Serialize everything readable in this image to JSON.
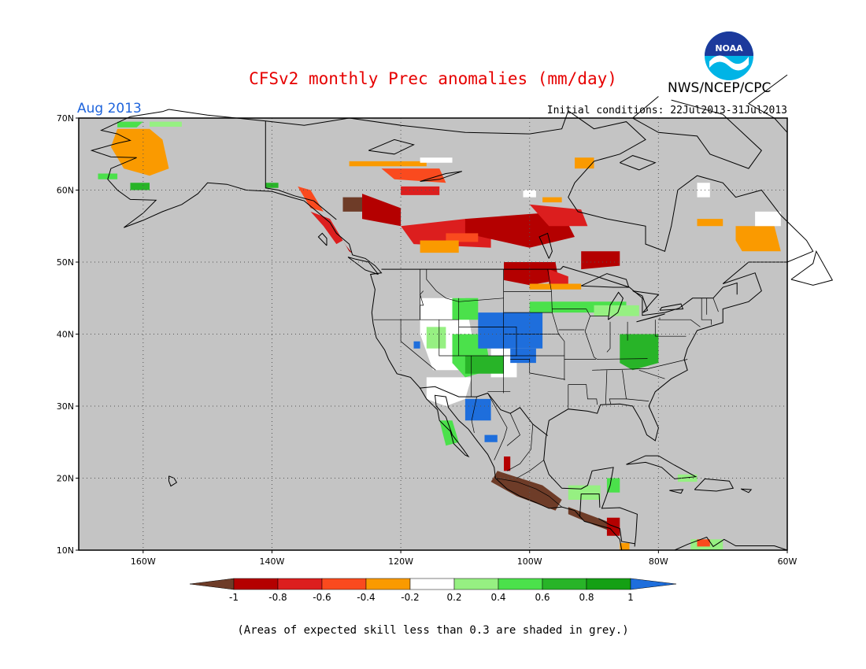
{
  "title": "CFSv2 monthly Prec anomalies (mm/day)",
  "agency": "NWS/NCEP/CPC",
  "logo": {
    "text": "NOAA",
    "colors": {
      "outer": "#00b4e6",
      "inner": "#1c3a9c"
    }
  },
  "period": "Aug 2013",
  "initial_conditions": "Initial conditions: 22Jul2013-31Jul2013",
  "map": {
    "projection": "equirectangular",
    "lon_range": [
      -170,
      -60
    ],
    "lat_range": [
      10,
      70
    ],
    "lat_labels": [
      "10N",
      "20N",
      "30N",
      "40N",
      "50N",
      "60N",
      "70N"
    ],
    "lon_labels": [
      "160W",
      "140W",
      "120W",
      "100W",
      "80W",
      "60W"
    ],
    "lat_values": [
      10,
      20,
      30,
      40,
      50,
      60,
      70
    ],
    "lon_values": [
      -160,
      -140,
      -120,
      -100,
      -80,
      -60
    ],
    "background_color": "#c4c4c4",
    "grid": "dotted"
  },
  "colorbar": {
    "tick_labels": [
      "-1",
      "-0.8",
      "-0.6",
      "-0.4",
      "-0.2",
      "0.2",
      "0.4",
      "0.6",
      "0.8",
      "1"
    ],
    "colors": [
      "#6e3c28",
      "#b40000",
      "#dc1e1e",
      "#fa4a1e",
      "#fa9a00",
      "#ffffff",
      "#96f082",
      "#4be14b",
      "#28b428",
      "#14a014",
      "#1e6edc"
    ]
  },
  "anomaly_regions": [
    {
      "cat": 4,
      "poly": [
        [
          -164,
          68.5
        ],
        [
          -159,
          68.5
        ],
        [
          -157,
          67
        ],
        [
          -156,
          63
        ],
        [
          -159,
          62
        ],
        [
          -163,
          63
        ],
        [
          -165,
          66
        ]
      ]
    },
    {
      "cat": 7,
      "poly": [
        [
          -164,
          69.5
        ],
        [
          -160,
          69.5
        ],
        [
          -161,
          68.7
        ],
        [
          -164,
          68.7
        ]
      ]
    },
    {
      "cat": 6,
      "poly": [
        [
          -159,
          69.5
        ],
        [
          -154,
          69.5
        ],
        [
          -154,
          68.8
        ],
        [
          -159,
          68.8
        ]
      ]
    },
    {
      "cat": 7,
      "poly": [
        [
          -167,
          62.3
        ],
        [
          -164,
          62.3
        ],
        [
          -164,
          61.5
        ],
        [
          -167,
          61.5
        ]
      ]
    },
    {
      "cat": 8,
      "poly": [
        [
          -162,
          61
        ],
        [
          -159,
          61
        ],
        [
          -159,
          60
        ],
        [
          -162,
          60
        ]
      ]
    },
    {
      "cat": 8,
      "poly": [
        [
          -141,
          61
        ],
        [
          -139,
          61
        ],
        [
          -139,
          60.3
        ],
        [
          -141,
          60.3
        ]
      ]
    },
    {
      "cat": 3,
      "poly": [
        [
          -136,
          60.5
        ],
        [
          -134,
          60
        ],
        [
          -132,
          57
        ],
        [
          -134,
          57.5
        ]
      ]
    },
    {
      "cat": 2,
      "poly": [
        [
          -134,
          57
        ],
        [
          -131,
          56
        ],
        [
          -129,
          53
        ],
        [
          -130,
          52.5
        ],
        [
          -132,
          55
        ]
      ]
    },
    {
      "cat": 1,
      "poly": [
        [
          -129,
          53
        ],
        [
          -128,
          51.5
        ],
        [
          -127.5,
          51.2
        ],
        [
          -128.5,
          52.3
        ]
      ]
    },
    {
      "cat": 4,
      "poly": [
        [
          -128,
          64
        ],
        [
          -116,
          64
        ],
        [
          -116,
          63.3
        ],
        [
          -128,
          63.3
        ]
      ]
    },
    {
      "cat": 3,
      "poly": [
        [
          -123,
          63
        ],
        [
          -114,
          63
        ],
        [
          -113,
          61
        ],
        [
          -121,
          61.5
        ]
      ]
    },
    {
      "cat": 2,
      "poly": [
        [
          -120,
          60.5
        ],
        [
          -114,
          60.5
        ],
        [
          -114,
          59.3
        ],
        [
          -120,
          59.3
        ]
      ]
    },
    {
      "cat": 0,
      "poly": [
        [
          -129,
          59
        ],
        [
          -125,
          59
        ],
        [
          -125,
          57
        ],
        [
          -129,
          57
        ]
      ]
    },
    {
      "cat": 1,
      "poly": [
        [
          -126,
          59.5
        ],
        [
          -120,
          57.5
        ],
        [
          -120,
          55
        ],
        [
          -126,
          56
        ]
      ]
    },
    {
      "cat": 2,
      "poly": [
        [
          -120,
          55
        ],
        [
          -110,
          56
        ],
        [
          -106,
          55
        ],
        [
          -106,
          52
        ],
        [
          -118,
          52.5
        ]
      ]
    },
    {
      "cat": 1,
      "poly": [
        [
          -110,
          56
        ],
        [
          -95,
          57
        ],
        [
          -93,
          53.5
        ],
        [
          -100,
          52
        ],
        [
          -110,
          54
        ]
      ]
    },
    {
      "cat": 2,
      "poly": [
        [
          -100,
          58
        ],
        [
          -92,
          57.3
        ],
        [
          -91,
          55
        ],
        [
          -97,
          55
        ]
      ]
    },
    {
      "cat": 3,
      "poly": [
        [
          -113,
          54
        ],
        [
          -108,
          54
        ],
        [
          -108,
          52.8
        ],
        [
          -113,
          52.8
        ]
      ]
    },
    {
      "cat": 4,
      "poly": [
        [
          -117,
          53
        ],
        [
          -111,
          53
        ],
        [
          -111,
          51.3
        ],
        [
          -117,
          51.3
        ]
      ]
    },
    {
      "cat": 4,
      "poly": [
        [
          -98,
          59
        ],
        [
          -95,
          59
        ],
        [
          -95,
          58.3
        ],
        [
          -98,
          58.3
        ]
      ]
    },
    {
      "cat": 1,
      "poly": [
        [
          -104,
          50
        ],
        [
          -96,
          50
        ],
        [
          -95.5,
          47.5
        ],
        [
          -100,
          46.8
        ],
        [
          -104,
          47.5
        ]
      ]
    },
    {
      "cat": 1,
      "poly": [
        [
          -92,
          51.5
        ],
        [
          -86,
          51.5
        ],
        [
          -86,
          49.5
        ],
        [
          -92,
          49
        ]
      ]
    },
    {
      "cat": 2,
      "poly": [
        [
          -97,
          49
        ],
        [
          -94,
          48
        ],
        [
          -94,
          46.5
        ],
        [
          -97,
          47
        ]
      ]
    },
    {
      "cat": 4,
      "poly": [
        [
          -100,
          47
        ],
        [
          -92,
          47
        ],
        [
          -92,
          46.2
        ],
        [
          -100,
          46.2
        ]
      ]
    },
    {
      "cat": 4,
      "poly": [
        [
          -93,
          64.5
        ],
        [
          -90,
          64.5
        ],
        [
          -90,
          63
        ],
        [
          -93,
          63
        ]
      ]
    },
    {
      "cat": 4,
      "poly": [
        [
          -74,
          56
        ],
        [
          -70,
          56
        ],
        [
          -70,
          55
        ],
        [
          -74,
          55
        ]
      ]
    },
    {
      "cat": 4,
      "poly": [
        [
          -68,
          55
        ],
        [
          -62,
          55
        ],
        [
          -61,
          51.5
        ],
        [
          -67,
          51.5
        ],
        [
          -68,
          53
        ]
      ]
    },
    {
      "cat": 5,
      "poly": [
        [
          -65,
          57
        ],
        [
          -61,
          57
        ],
        [
          -61,
          55
        ],
        [
          -65,
          55
        ]
      ]
    },
    {
      "cat": 5,
      "poly": [
        [
          -74,
          61
        ],
        [
          -72,
          61
        ],
        [
          -72,
          59
        ],
        [
          -74,
          59
        ]
      ]
    },
    {
      "cat": 5,
      "poly": [
        [
          -101,
          60
        ],
        [
          -99,
          60
        ],
        [
          -99,
          59
        ],
        [
          -101,
          59
        ]
      ]
    },
    {
      "cat": 5,
      "poly": [
        [
          -117,
          64.5
        ],
        [
          -112,
          64.5
        ],
        [
          -112,
          63.8
        ],
        [
          -117,
          63.8
        ]
      ]
    },
    {
      "cat": 5,
      "poly": [
        [
          -117,
          45
        ],
        [
          -110,
          45
        ],
        [
          -109,
          40
        ],
        [
          -111,
          35
        ],
        [
          -115,
          35
        ],
        [
          -117,
          40
        ]
      ]
    },
    {
      "cat": 5,
      "poly": [
        [
          -116,
          34
        ],
        [
          -109,
          34
        ],
        [
          -110,
          31
        ],
        [
          -113,
          30
        ],
        [
          -116,
          31
        ]
      ]
    },
    {
      "cat": 5,
      "poly": [
        [
          -106,
          38
        ],
        [
          -102,
          38
        ],
        [
          -102,
          34
        ],
        [
          -106,
          34
        ]
      ]
    },
    {
      "cat": 6,
      "poly": [
        [
          -116,
          41
        ],
        [
          -113,
          41
        ],
        [
          -113,
          38
        ],
        [
          -116,
          38
        ]
      ]
    },
    {
      "cat": 7,
      "poly": [
        [
          -112,
          45
        ],
        [
          -108,
          45
        ],
        [
          -108,
          42
        ],
        [
          -112,
          42
        ]
      ]
    },
    {
      "cat": 7,
      "poly": [
        [
          -112,
          40
        ],
        [
          -107,
          40
        ],
        [
          -106,
          35
        ],
        [
          -110,
          34
        ],
        [
          -112,
          36
        ]
      ]
    },
    {
      "cat": 8,
      "poly": [
        [
          -110,
          37
        ],
        [
          -104,
          37
        ],
        [
          -104,
          34.5
        ],
        [
          -110,
          34.5
        ]
      ]
    },
    {
      "cat": 7,
      "poly": [
        [
          -100,
          44.5
        ],
        [
          -85,
          44.5
        ],
        [
          -85,
          43
        ],
        [
          -100,
          43
        ]
      ]
    },
    {
      "cat": 8,
      "poly": [
        [
          -86,
          40
        ],
        [
          -80,
          40
        ],
        [
          -80,
          36
        ],
        [
          -84,
          35
        ],
        [
          -86,
          36
        ]
      ]
    },
    {
      "cat": 6,
      "poly": [
        [
          -90,
          44
        ],
        [
          -83,
          44
        ],
        [
          -83,
          42.5
        ],
        [
          -90,
          42.5
        ]
      ]
    },
    {
      "cat": 7,
      "poly": [
        [
          -114,
          28
        ],
        [
          -112,
          28
        ],
        [
          -111,
          25
        ],
        [
          -113,
          24.5
        ]
      ]
    },
    {
      "cat": 10,
      "poly": [
        [
          -108,
          43
        ],
        [
          -98,
          43
        ],
        [
          -98,
          38
        ],
        [
          -108,
          38
        ]
      ]
    },
    {
      "cat": 10,
      "poly": [
        [
          -103,
          38
        ],
        [
          -99,
          38
        ],
        [
          -99,
          36
        ],
        [
          -103,
          36
        ]
      ]
    },
    {
      "cat": 10,
      "poly": [
        [
          -110,
          31
        ],
        [
          -106,
          31
        ],
        [
          -106,
          28
        ],
        [
          -110,
          28
        ]
      ]
    },
    {
      "cat": 10,
      "poly": [
        [
          -107,
          26
        ],
        [
          -105,
          26
        ],
        [
          -105,
          25
        ],
        [
          -107,
          25
        ]
      ]
    },
    {
      "cat": 10,
      "poly": [
        [
          -118,
          39
        ],
        [
          -117,
          39
        ],
        [
          -117,
          38
        ],
        [
          -118,
          38
        ]
      ]
    },
    {
      "cat": 0,
      "poly": [
        [
          -105,
          21
        ],
        [
          -98,
          19
        ],
        [
          -95,
          17
        ],
        [
          -96,
          15.5
        ],
        [
          -102,
          17.5
        ],
        [
          -106,
          19.5
        ]
      ]
    },
    {
      "cat": 0,
      "poly": [
        [
          -94,
          16
        ],
        [
          -88,
          14
        ],
        [
          -87,
          12.5
        ],
        [
          -90,
          13.5
        ],
        [
          -94,
          15
        ]
      ]
    },
    {
      "cat": 1,
      "poly": [
        [
          -104,
          23
        ],
        [
          -103,
          23
        ],
        [
          -103,
          21
        ],
        [
          -104,
          21
        ]
      ]
    },
    {
      "cat": 1,
      "poly": [
        [
          -88,
          14.5
        ],
        [
          -86,
          14.5
        ],
        [
          -86,
          12
        ],
        [
          -88,
          12
        ]
      ]
    },
    {
      "cat": 4,
      "poly": [
        [
          -86,
          11
        ],
        [
          -84.5,
          11
        ],
        [
          -84.5,
          10
        ],
        [
          -86,
          10
        ]
      ]
    },
    {
      "cat": 6,
      "poly": [
        [
          -94,
          19
        ],
        [
          -89,
          19
        ],
        [
          -89,
          17
        ],
        [
          -94,
          17
        ]
      ]
    },
    {
      "cat": 7,
      "poly": [
        [
          -88,
          20
        ],
        [
          -86,
          20
        ],
        [
          -86,
          18
        ],
        [
          -88,
          18
        ]
      ]
    },
    {
      "cat": 6,
      "poly": [
        [
          -77,
          20.5
        ],
        [
          -74,
          20.5
        ],
        [
          -74,
          19.5
        ],
        [
          -77,
          19.5
        ]
      ]
    },
    {
      "cat": 6,
      "poly": [
        [
          -75,
          11.5
        ],
        [
          -70,
          11.5
        ],
        [
          -70,
          10
        ],
        [
          -75,
          10
        ]
      ]
    },
    {
      "cat": 3,
      "poly": [
        [
          -74,
          11.5
        ],
        [
          -72,
          11.5
        ],
        [
          -72,
          10.5
        ],
        [
          -74,
          10.5
        ]
      ]
    }
  ],
  "footnote": "(Areas of expected skill less than 0.3 are shaded in grey.)"
}
